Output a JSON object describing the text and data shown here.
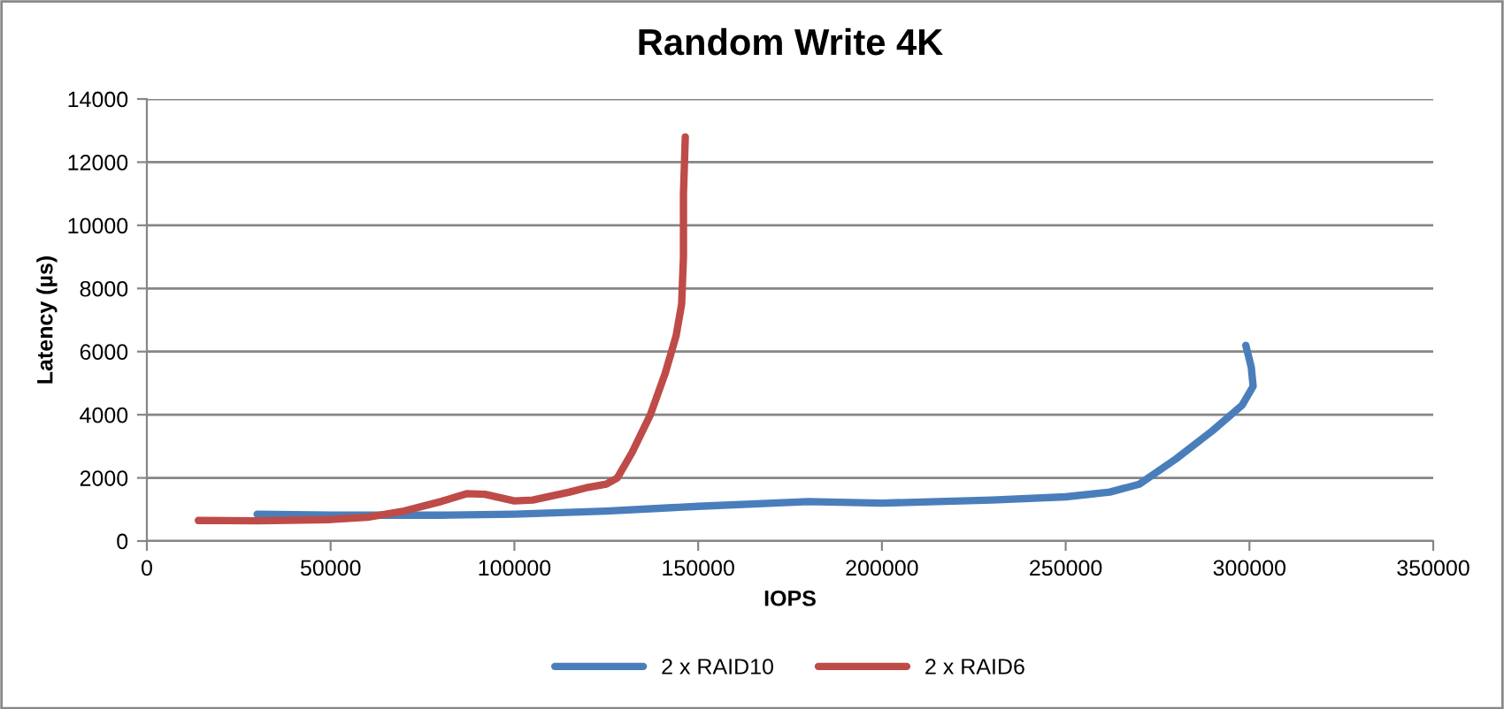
{
  "chart_data": {
    "type": "line",
    "title": "Random Write 4K",
    "xlabel": "IOPS",
    "ylabel": "Latency (µs)",
    "xlim": [
      0,
      350000
    ],
    "xticks": [
      0,
      50000,
      100000,
      150000,
      200000,
      250000,
      300000,
      350000
    ],
    "ylim": [
      0,
      14000
    ],
    "yticks": [
      0,
      2000,
      4000,
      6000,
      8000,
      10000,
      12000,
      14000
    ],
    "grid": "y",
    "legend": "bottom",
    "marker": "none",
    "line_style": "solid",
    "series": [
      {
        "name": "2 x RAID10",
        "color": "#4a7ebb",
        "x": [
          30000,
          50000,
          80000,
          100000,
          125000,
          150000,
          180000,
          200000,
          230000,
          250000,
          262000,
          270000,
          280000,
          290000,
          298000,
          301000,
          300500,
          299000
        ],
        "values": [
          850,
          820,
          820,
          850,
          950,
          1100,
          1250,
          1200,
          1300,
          1400,
          1550,
          1800,
          2600,
          3500,
          4300,
          4900,
          5500,
          6200
        ]
      },
      {
        "name": "2 x RAID6",
        "color": "#be4b48",
        "x": [
          14000,
          30000,
          50000,
          60000,
          70000,
          80000,
          87000,
          92000,
          100000,
          105000,
          115000,
          120000,
          125000,
          128000,
          132000,
          137000,
          141000,
          144000,
          145500,
          146000,
          146000,
          146500
        ],
        "values": [
          650,
          640,
          680,
          750,
          950,
          1250,
          1500,
          1480,
          1270,
          1300,
          1550,
          1700,
          1800,
          2000,
          2800,
          4000,
          5300,
          6500,
          7500,
          9000,
          11000,
          12800
        ]
      }
    ]
  }
}
